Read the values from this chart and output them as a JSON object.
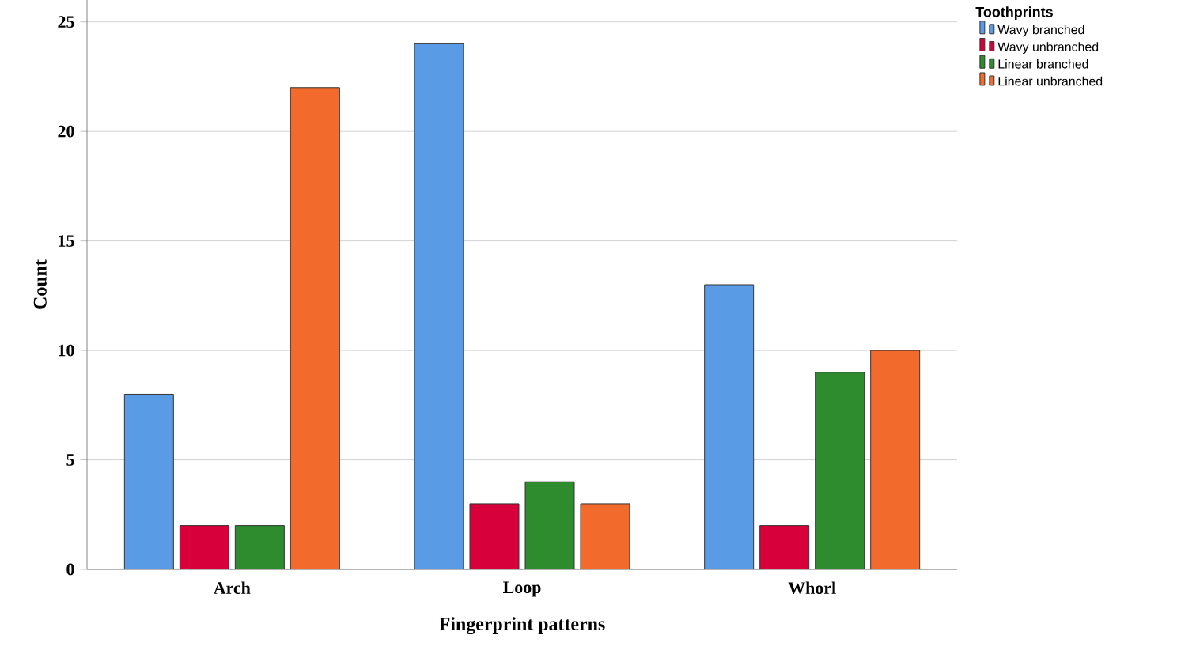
{
  "chart_data": {
    "type": "bar",
    "xlabel": "Fingerprint patterns",
    "ylabel": "Count",
    "legend_title": "Toothprints",
    "categories": [
      "Arch",
      "Loop",
      "Whorl"
    ],
    "series": [
      {
        "name": "Wavy branched",
        "color": "#5a9be6",
        "values": [
          8,
          24,
          13
        ]
      },
      {
        "name": "Wavy unbranched",
        "color": "#d8003a",
        "values": [
          2,
          3,
          2
        ]
      },
      {
        "name": "Linear branched",
        "color": "#2e8b2e",
        "values": [
          2,
          4,
          9
        ]
      },
      {
        "name": "Linear unbranched",
        "color": "#f26b2d",
        "values": [
          22,
          3,
          10
        ]
      }
    ],
    "ylim": [
      0,
      26
    ],
    "yticks": [
      0,
      5,
      10,
      15,
      20,
      25
    ],
    "grid": "y",
    "legend": "top right"
  }
}
